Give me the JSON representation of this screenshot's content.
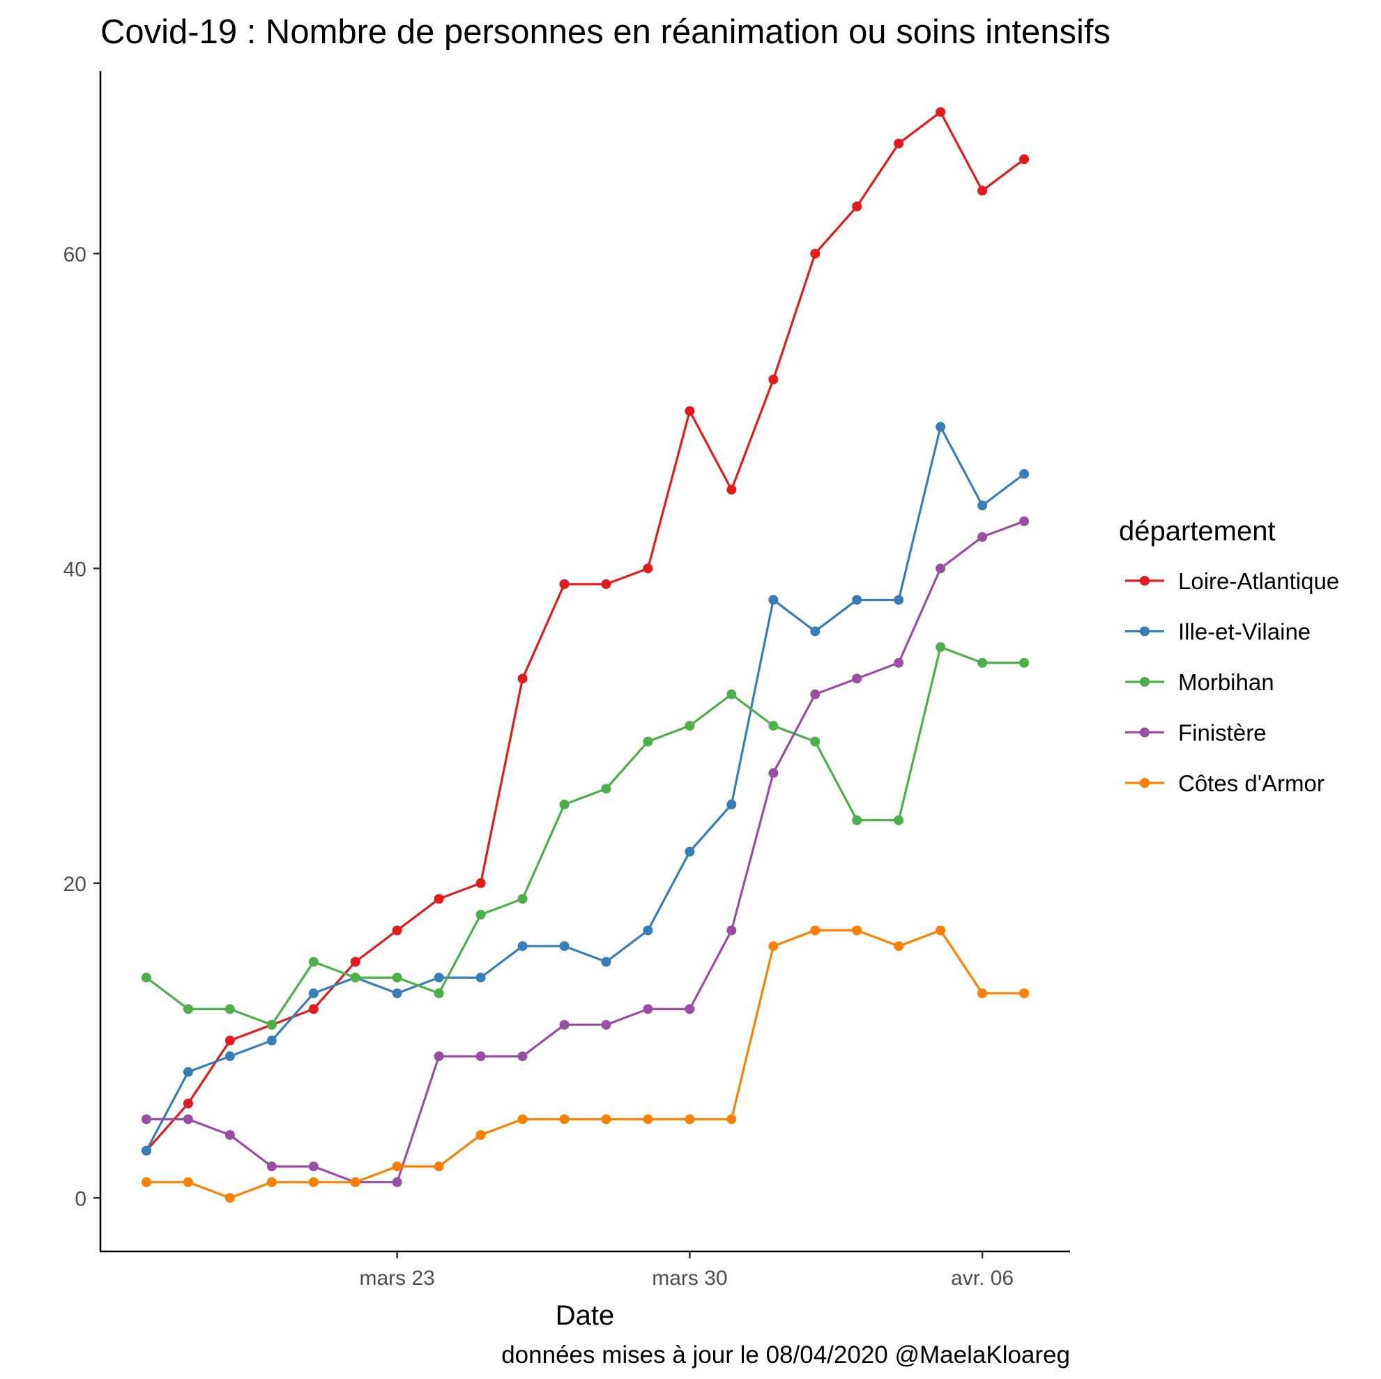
{
  "chart_data": {
    "type": "line",
    "title": "Covid-19 : Nombre de personnes en réanimation ou soins intensifs",
    "xlabel": "Date",
    "ylabel": "",
    "caption": "données mises à jour le 08/04/2020 @MaelaKloareg",
    "x": [
      "2020-03-17",
      "2020-03-18",
      "2020-03-19",
      "2020-03-20",
      "2020-03-21",
      "2020-03-22",
      "2020-03-23",
      "2020-03-24",
      "2020-03-25",
      "2020-03-26",
      "2020-03-27",
      "2020-03-28",
      "2020-03-29",
      "2020-03-30",
      "2020-03-31",
      "2020-04-01",
      "2020-04-02",
      "2020-04-03",
      "2020-04-04",
      "2020-04-05",
      "2020-04-06",
      "2020-04-07",
      "2020-04-08"
    ],
    "x_ticks": [
      {
        "date": "2020-03-23",
        "label": "mars 23"
      },
      {
        "date": "2020-03-30",
        "label": "mars 30"
      },
      {
        "date": "2020-04-06",
        "label": "avr. 06"
      }
    ],
    "y_ticks": [
      0,
      20,
      40,
      60
    ],
    "ylim": [
      -3.4,
      71.6
    ],
    "grid": false,
    "legend": {
      "title": "département",
      "position": "right"
    },
    "series": [
      {
        "name": "Loire-Atlantique",
        "color": "#e41a1c",
        "values": [
          3,
          6,
          10,
          11,
          12,
          15,
          17,
          19,
          20,
          33,
          39,
          39,
          40,
          50,
          45,
          52,
          60,
          63,
          67,
          69,
          64,
          66,
          null
        ]
      },
      {
        "name": "Ille-et-Vilaine",
        "color": "#377eb8",
        "values": [
          3,
          8,
          9,
          10,
          13,
          14,
          13,
          14,
          14,
          16,
          16,
          15,
          17,
          22,
          25,
          38,
          36,
          38,
          38,
          49,
          44,
          46,
          null
        ]
      },
      {
        "name": "Morbihan",
        "color": "#4daf4a",
        "values": [
          14,
          12,
          12,
          11,
          15,
          14,
          14,
          13,
          18,
          19,
          25,
          26,
          29,
          30,
          32,
          30,
          29,
          24,
          24,
          35,
          34,
          34,
          null
        ]
      },
      {
        "name": "Finistère",
        "color": "#984ea3",
        "values": [
          5,
          5,
          4,
          2,
          2,
          1,
          1,
          9,
          9,
          9,
          11,
          11,
          12,
          12,
          17,
          27,
          32,
          33,
          34,
          40,
          42,
          43,
          null
        ]
      },
      {
        "name": "Côtes d'Armor",
        "color": "#ff7f00",
        "values": [
          1,
          1,
          0,
          1,
          1,
          1,
          2,
          2,
          4,
          5,
          5,
          5,
          5,
          5,
          5,
          16,
          17,
          17,
          16,
          17,
          13,
          13,
          null
        ]
      }
    ]
  }
}
